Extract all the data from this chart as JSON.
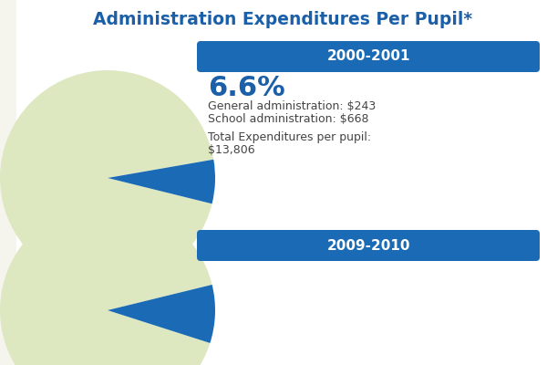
{
  "title": "Administration Expenditures Per Pupil*",
  "title_color": "#1a5fa8",
  "background_color": "#ffffff",
  "section1_year": "2000-2001",
  "section1_pct": "6.6%",
  "section1_pct_color": "#1a5fa8",
  "section1_line1": "General administration: $243",
  "section1_line2": "School administration: $668",
  "section1_line3": "Total Expenditures per pupil:",
  "section1_line4": "$13,806",
  "section1_pie_blue_pct": 6.6,
  "section2_year": "2009-2010",
  "section2_pie_blue_pct": 8.75,
  "pie_color_light": "#dde8c0",
  "pie_color_blue": "#1a6ab5",
  "year_banner_color": "#1a6ab5",
  "year_text_color": "#ffffff",
  "text_color_dark": "#444444",
  "bg_stripe_color": "#f5f5ee"
}
